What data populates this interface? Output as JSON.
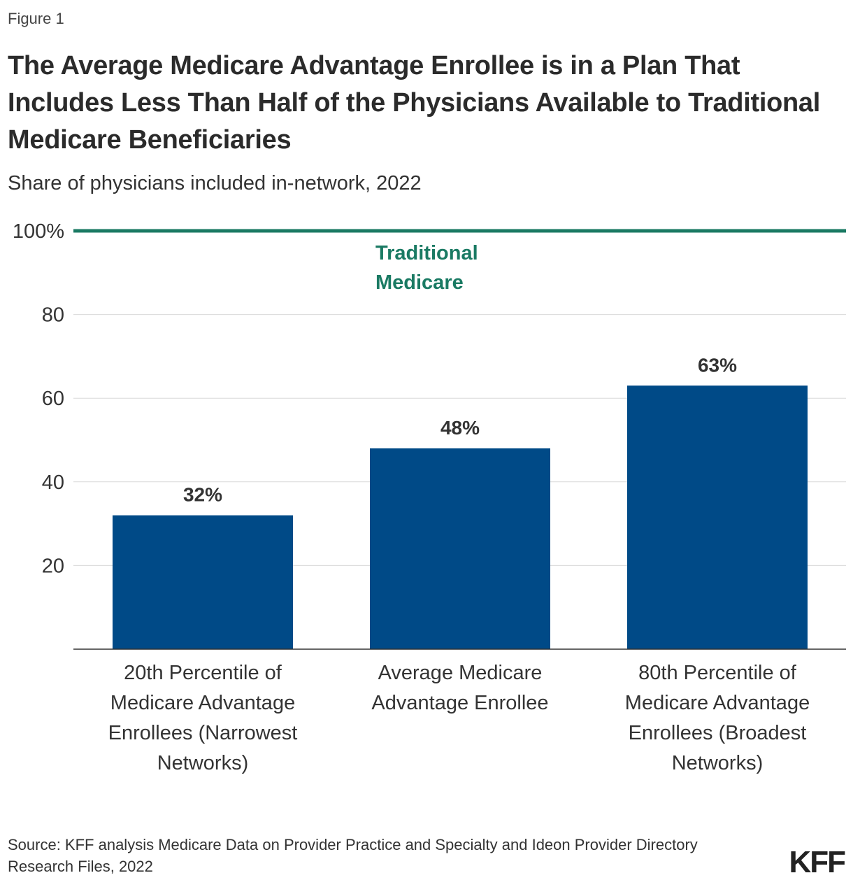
{
  "figure_label": "Figure 1",
  "title": "The Average Medicare Advantage Enrollee is in a Plan That Includes Less Than Half of the Physicians Available to Traditional Medicare Beneficiaries",
  "subtitle": "Share of physicians included in-network, 2022",
  "source": "Source: KFF analysis Medicare Data on Provider Practice and Specialty and Ideon Provider Directory Research Files, 2022",
  "logo": "KFF",
  "colors": {
    "bar": "#004a87",
    "reference": "#1a7a63",
    "grid": "#d9d9d9"
  },
  "chart_data": {
    "type": "bar",
    "categories": [
      [
        "20th Percentile of",
        "Medicare Advantage",
        "Enrollees (Narrowest",
        "Networks)"
      ],
      [
        "Average Medicare",
        "Advantage Enrollee"
      ],
      [
        "80th Percentile of",
        "Medicare Advantage",
        "Enrollees (Broadest",
        "Networks)"
      ]
    ],
    "values": [
      32,
      48,
      63
    ],
    "data_labels": [
      "32%",
      "48%",
      "63%"
    ],
    "ylim": [
      0,
      100
    ],
    "yticks": [
      20,
      40,
      60,
      80,
      100
    ],
    "ytick_labels": [
      "20",
      "40",
      "60",
      "80",
      "100%"
    ],
    "reference_line": {
      "value": 100,
      "label": [
        "Traditional",
        "Medicare"
      ]
    },
    "xlabel": "",
    "ylabel": "",
    "grid": true
  }
}
